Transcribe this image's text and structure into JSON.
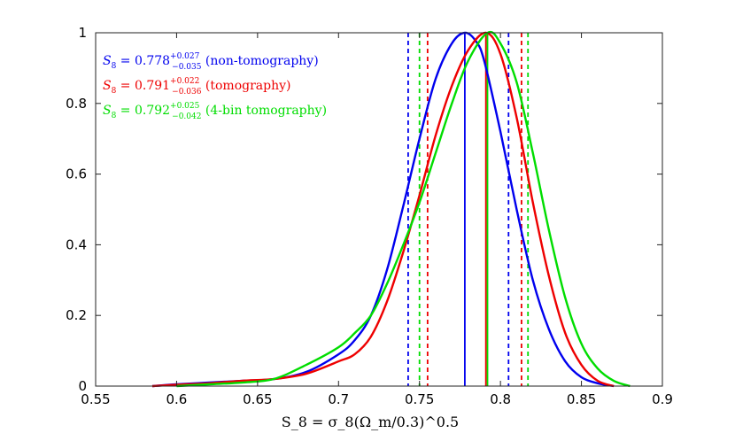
{
  "chart_data": {
    "type": "line",
    "title": "",
    "xlabel": "S_8 = σ_8(Ω_m/0.3)^0.5",
    "ylabel": "",
    "xlim": [
      0.55,
      0.9
    ],
    "ylim": [
      0,
      1
    ],
    "xticks": [
      0.55,
      0.6,
      0.65,
      0.7,
      0.75,
      0.8,
      0.85,
      0.9
    ],
    "xtick_labels": [
      "0.55",
      "0.6",
      "0.65",
      "0.7",
      "0.75",
      "0.8",
      "0.85",
      "0.9"
    ],
    "yticks": [
      0,
      0.2,
      0.4,
      0.6,
      0.8,
      1
    ],
    "ytick_labels": [
      "0",
      "0.2",
      "0.4",
      "0.6",
      "0.8",
      "1"
    ],
    "grid": false,
    "legend_position": "top-left",
    "series": [
      {
        "name": "non-tomography",
        "color": "#0000ee",
        "median": 0.778,
        "lower": 0.743,
        "upper": 0.805,
        "legend": {
          "prefix": "S",
          "prefix_sub": "8",
          "value": " = 0.778",
          "sup": "+0.027",
          "sub": "−0.035",
          "suffix": " (non-tomography)"
        },
        "x": [
          0.585,
          0.6,
          0.62,
          0.64,
          0.66,
          0.68,
          0.7,
          0.71,
          0.72,
          0.73,
          0.74,
          0.75,
          0.76,
          0.77,
          0.778,
          0.785,
          0.79,
          0.8,
          0.81,
          0.82,
          0.83,
          0.84,
          0.85,
          0.86,
          0.87
        ],
        "y": [
          0.0,
          0.005,
          0.01,
          0.015,
          0.02,
          0.04,
          0.09,
          0.13,
          0.2,
          0.33,
          0.51,
          0.7,
          0.87,
          0.97,
          1.0,
          0.975,
          0.92,
          0.72,
          0.5,
          0.3,
          0.16,
          0.07,
          0.025,
          0.008,
          0.0
        ]
      },
      {
        "name": "tomography",
        "color": "#ee0000",
        "median": 0.791,
        "lower": 0.755,
        "upper": 0.813,
        "legend": {
          "prefix": "S",
          "prefix_sub": "8",
          "value": " = 0.791",
          "sup": "+0.022",
          "sub": "−0.036",
          "suffix": " (tomography)"
        },
        "x": [
          0.585,
          0.6,
          0.62,
          0.64,
          0.66,
          0.68,
          0.7,
          0.71,
          0.72,
          0.73,
          0.74,
          0.75,
          0.76,
          0.77,
          0.78,
          0.791,
          0.8,
          0.81,
          0.82,
          0.83,
          0.84,
          0.85,
          0.86,
          0.87
        ],
        "y": [
          0.0,
          0.004,
          0.008,
          0.015,
          0.02,
          0.035,
          0.07,
          0.09,
          0.14,
          0.24,
          0.38,
          0.54,
          0.71,
          0.85,
          0.95,
          1.0,
          0.94,
          0.76,
          0.52,
          0.31,
          0.15,
          0.06,
          0.015,
          0.0
        ]
      },
      {
        "name": "4-bin tomography",
        "color": "#00dd00",
        "median": 0.792,
        "lower": 0.75,
        "upper": 0.817,
        "legend": {
          "prefix": "S",
          "prefix_sub": "8",
          "value": " = 0.792",
          "sup": "+0.025",
          "sub": "−0.042",
          "suffix": " (4-bin tomography)"
        },
        "x": [
          0.6,
          0.62,
          0.64,
          0.66,
          0.68,
          0.7,
          0.71,
          0.72,
          0.73,
          0.74,
          0.75,
          0.76,
          0.77,
          0.78,
          0.792,
          0.8,
          0.81,
          0.82,
          0.83,
          0.84,
          0.85,
          0.86,
          0.87,
          0.88
        ],
        "y": [
          0.0,
          0.005,
          0.01,
          0.02,
          0.06,
          0.11,
          0.15,
          0.2,
          0.29,
          0.4,
          0.52,
          0.66,
          0.8,
          0.92,
          1.0,
          0.97,
          0.86,
          0.66,
          0.44,
          0.25,
          0.12,
          0.05,
          0.015,
          0.0
        ]
      }
    ]
  }
}
